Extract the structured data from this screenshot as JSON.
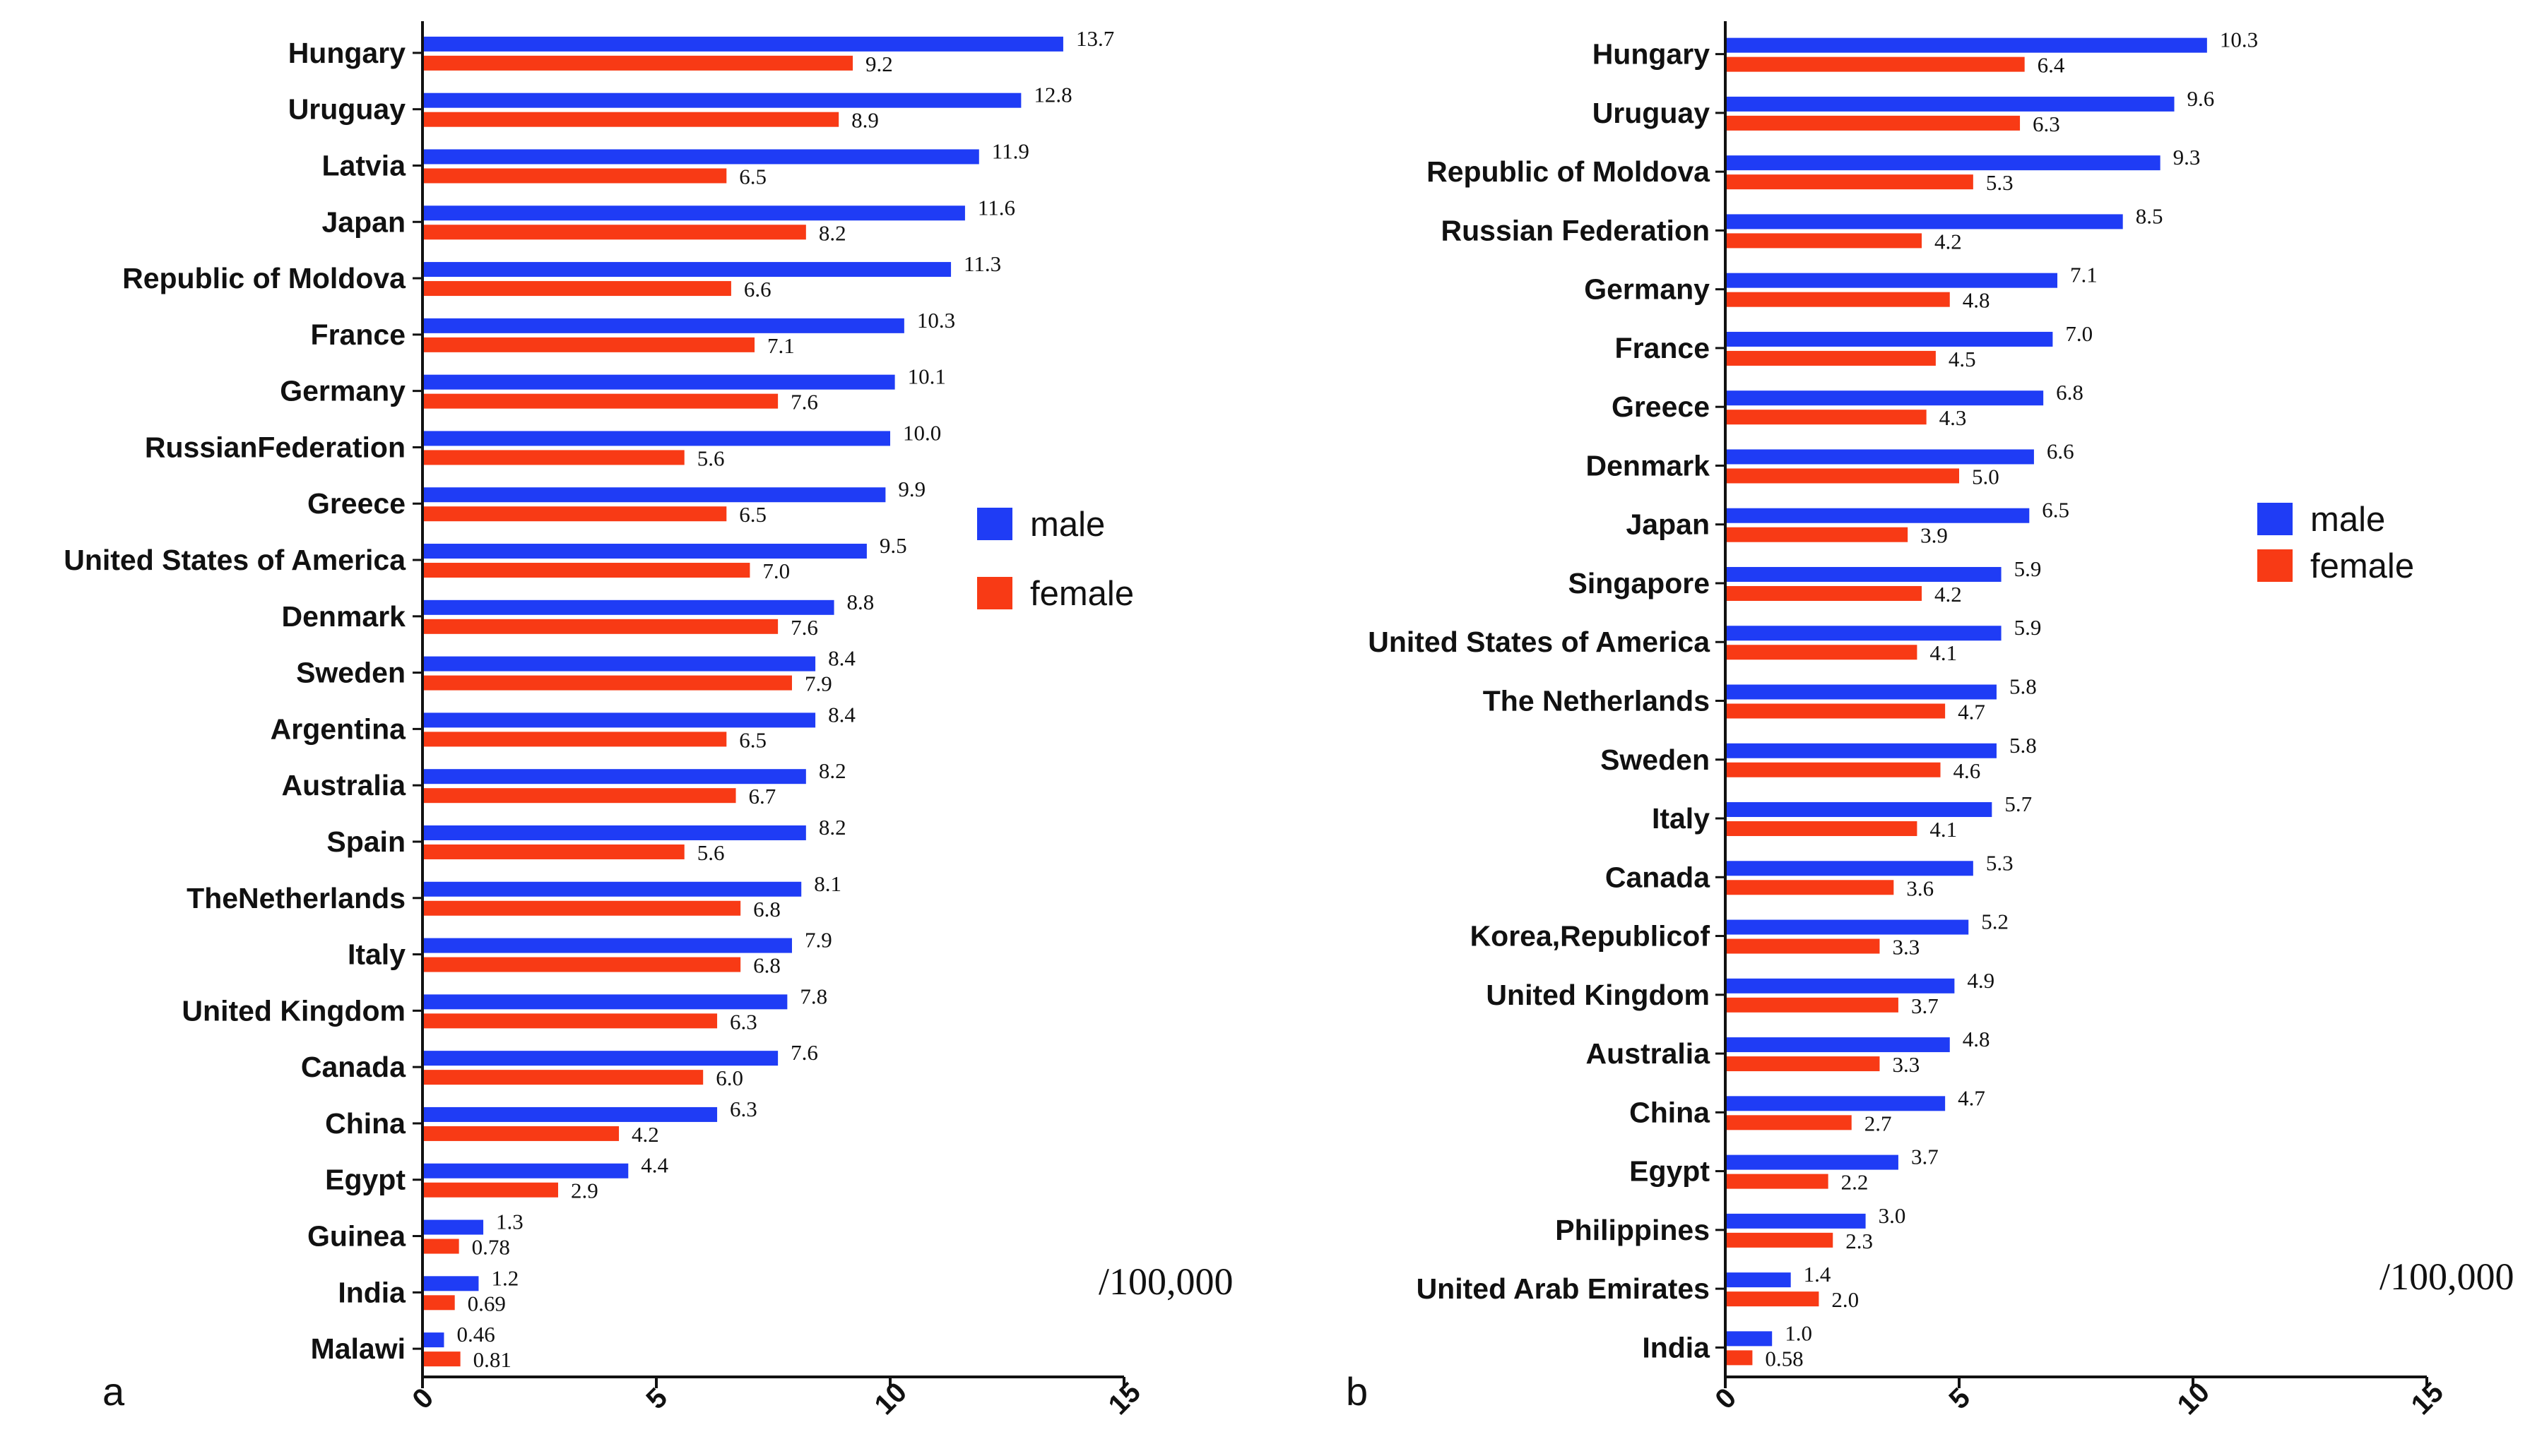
{
  "chart_data": [
    {
      "type": "bar",
      "orientation": "horizontal",
      "panel_label": "a",
      "unit_label": "/100,000",
      "xlim": [
        0,
        15
      ],
      "xticks": [
        "0",
        "5",
        "10",
        "15"
      ],
      "legend": {
        "position": "right",
        "entries": [
          "male",
          "female"
        ]
      },
      "categories": [
        "Hungary",
        "Uruguay",
        "Latvia",
        "Japan",
        "Republic of Moldova",
        "France",
        "Germany",
        "RussianFederation",
        "Greece",
        "United States of America",
        "Denmark",
        "Sweden",
        "Argentina",
        "Australia",
        "Spain",
        "TheNetherlands",
        "Italy",
        "United Kingdom",
        "Canada",
        "China",
        "Egypt",
        "Guinea",
        "India",
        "Malawi"
      ],
      "series": [
        {
          "name": "male",
          "values": [
            13.7,
            12.8,
            11.9,
            11.6,
            11.3,
            10.3,
            10.1,
            10.0,
            9.9,
            9.5,
            8.8,
            8.4,
            8.4,
            8.2,
            8.2,
            8.1,
            7.9,
            7.8,
            7.6,
            6.3,
            4.4,
            1.3,
            1.2,
            0.46
          ],
          "labels": [
            "13.7",
            "12.8",
            "11.9",
            "11.6",
            "11.3",
            "10.3",
            "10.1",
            "10.0",
            "9.9",
            "9.5",
            "8.8",
            "8.4",
            "8.4",
            "8.2",
            "8.2",
            "8.1",
            "7.9",
            "7.8",
            "7.6",
            "6.3",
            "4.4",
            "1.3",
            "1.2",
            "0.46"
          ]
        },
        {
          "name": "female",
          "values": [
            9.2,
            8.9,
            6.5,
            8.2,
            6.6,
            7.1,
            7.6,
            5.6,
            6.5,
            7.0,
            7.6,
            7.9,
            6.5,
            6.7,
            5.6,
            6.8,
            6.8,
            6.3,
            6.0,
            4.2,
            2.9,
            0.78,
            0.69,
            0.81
          ],
          "labels": [
            "9.2",
            "8.9",
            "6.5",
            "8.2",
            "6.6",
            "7.1",
            "7.6",
            "5.6",
            "6.5",
            "7.0",
            "7.6",
            "7.9",
            "6.5",
            "6.7",
            "5.6",
            "6.8",
            "6.8",
            "6.3",
            "6.0",
            "4.2",
            "2.9",
            "0.78",
            "0.69",
            "0.81"
          ]
        }
      ]
    },
    {
      "type": "bar",
      "orientation": "horizontal",
      "panel_label": "b",
      "unit_label": "/100,000",
      "xlim": [
        0,
        15
      ],
      "xticks": [
        "0",
        "5",
        "10",
        "15"
      ],
      "legend": {
        "position": "right",
        "entries": [
          "male",
          "female"
        ]
      },
      "categories": [
        "Hungary",
        "Uruguay",
        "Republic of Moldova",
        "Russian Federation",
        "Germany",
        "France",
        "Greece",
        "Denmark",
        "Japan",
        "Singapore",
        "United States of America",
        "The Netherlands",
        "Sweden",
        "Italy",
        "Canada",
        "Korea,Republicof",
        "United Kingdom",
        "Australia",
        "China",
        "Egypt",
        "Philippines",
        "United Arab Emirates",
        "India"
      ],
      "series": [
        {
          "name": "male",
          "values": [
            10.3,
            9.6,
            9.3,
            8.5,
            7.1,
            7.0,
            6.8,
            6.6,
            6.5,
            5.9,
            5.9,
            5.8,
            5.8,
            5.7,
            5.3,
            5.2,
            4.9,
            4.8,
            4.7,
            3.7,
            3.0,
            1.4,
            1.0
          ],
          "labels": [
            "10.3",
            "9.6",
            "9.3",
            "8.5",
            "7.1",
            "7.0",
            "6.8",
            "6.6",
            "6.5",
            "5.9",
            "5.9",
            "5.8",
            "5.8",
            "5.7",
            "5.3",
            "5.2",
            "4.9",
            "4.8",
            "4.7",
            "3.7",
            "3.0",
            "1.4",
            "1.0"
          ]
        },
        {
          "name": "female",
          "values": [
            6.4,
            6.3,
            5.3,
            4.2,
            4.8,
            4.5,
            4.3,
            5.0,
            3.9,
            4.2,
            4.1,
            4.7,
            4.6,
            4.1,
            3.6,
            3.3,
            3.7,
            3.3,
            2.7,
            2.2,
            2.3,
            2.0,
            0.58
          ],
          "labels": [
            "6.4",
            "6.3",
            "5.3",
            "4.2",
            "4.8",
            "4.5",
            "4.3",
            "5.0",
            "3.9",
            "4.2",
            "4.1",
            "4.7",
            "4.6",
            "4.1",
            "3.6",
            "3.3",
            "3.7",
            "3.3",
            "2.7",
            "2.2",
            "2.3",
            "2.0",
            "0.58"
          ]
        }
      ]
    }
  ],
  "colors": {
    "male": "#1f3cf5",
    "female": "#f83a15",
    "axis": "#111111"
  }
}
